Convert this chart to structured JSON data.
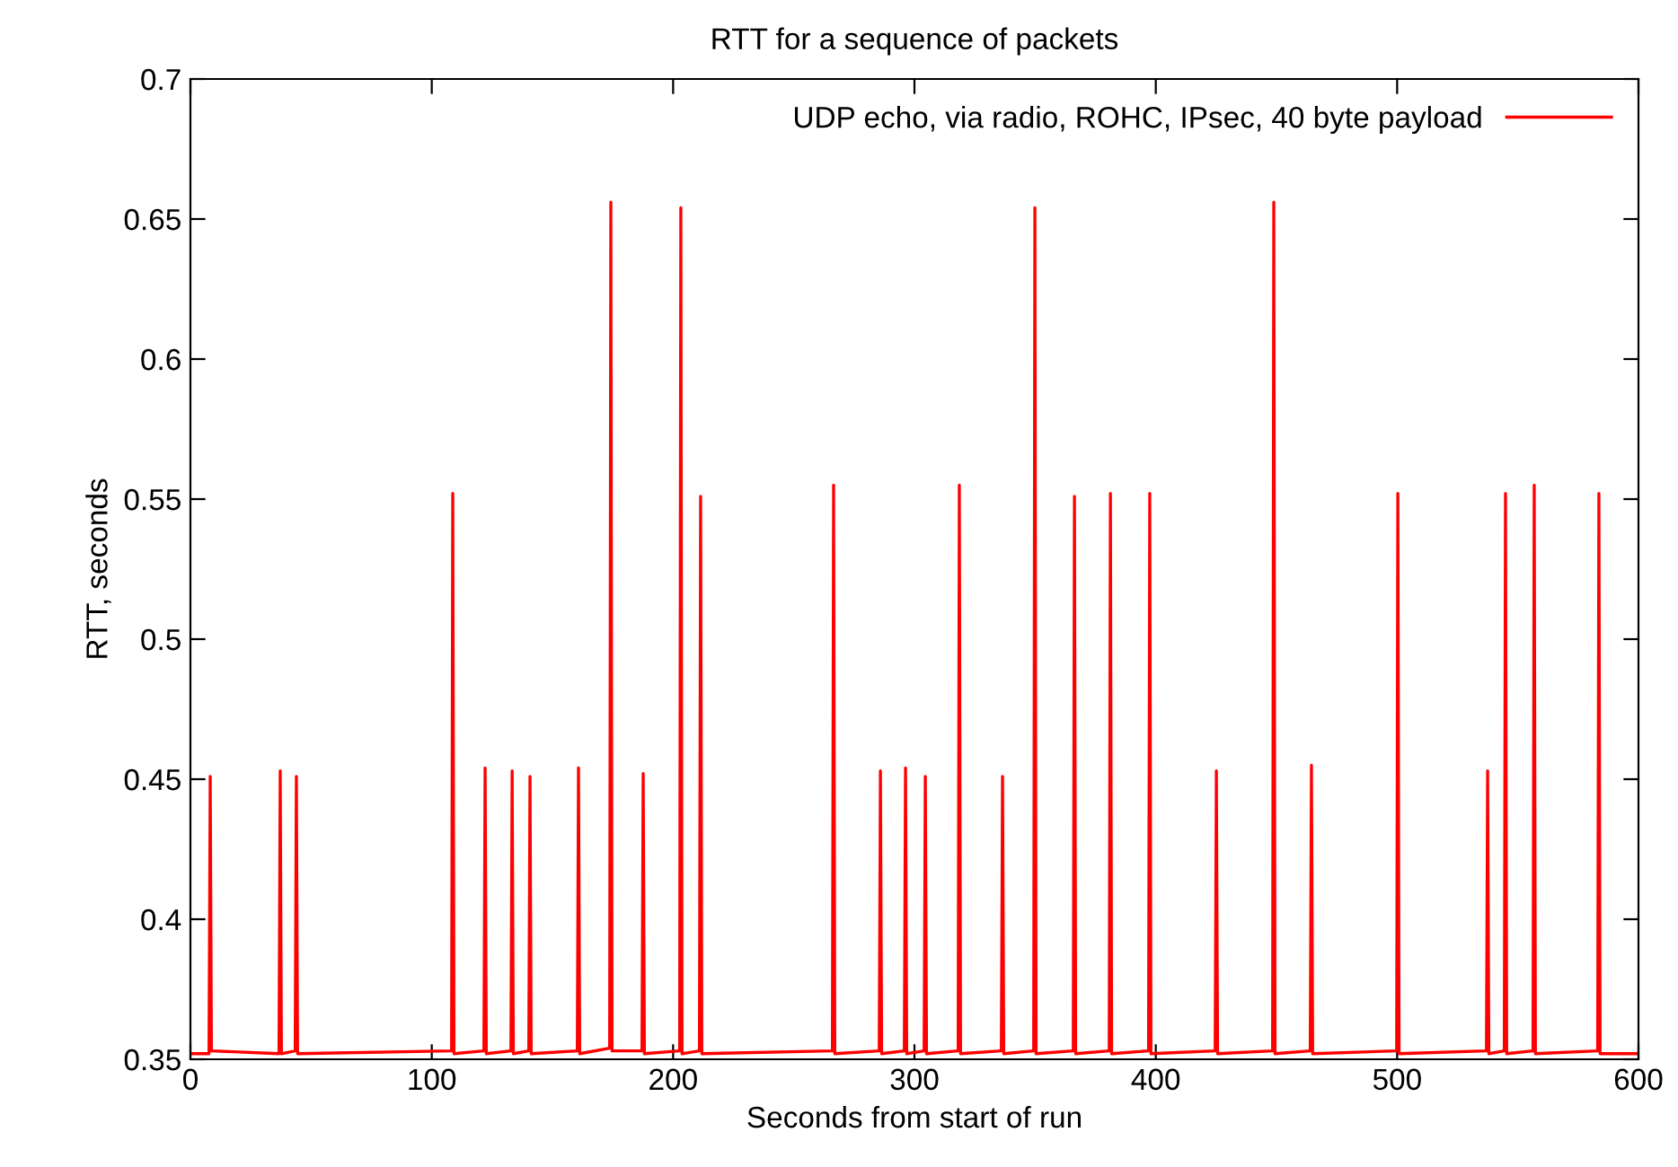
{
  "chart_data": {
    "type": "line",
    "title": "RTT for a sequence of packets",
    "xlabel": "Seconds from start of run",
    "ylabel": "RTT, seconds",
    "xlim": [
      0,
      600
    ],
    "xticks": [
      0,
      100,
      200,
      300,
      400,
      500,
      600
    ],
    "ylim": [
      0.35,
      0.7
    ],
    "yticks": [
      0.35,
      0.4,
      0.45,
      0.5,
      0.55,
      0.6,
      0.65,
      0.7
    ],
    "grid": false,
    "legend": "top right",
    "line_style": "solid",
    "marker": "none",
    "series": [
      {
        "name": "UDP echo, via radio, ROHC, IPsec, 40 byte payload",
        "color": "#ff0000",
        "x": [
          0,
          7.7,
          8.2,
          8.7,
          36.7,
          37.2,
          37.7,
          43.4,
          43.9,
          44.4,
          108.2,
          108.7,
          109.2,
          121.6,
          122.1,
          122.6,
          132.8,
          133.3,
          133.8,
          140.2,
          140.7,
          141.2,
          160.3,
          160.8,
          161.3,
          173.7,
          174.2,
          174.7,
          187.1,
          187.6,
          188.1,
          202.7,
          203.2,
          203.7,
          210.9,
          211.4,
          211.9,
          266.0,
          266.5,
          267.0,
          285.4,
          285.9,
          286.4,
          295.8,
          296.3,
          296.8,
          304.0,
          304.5,
          305.0,
          318.1,
          318.6,
          319.1,
          336.0,
          336.5,
          337.0,
          349.4,
          349.9,
          350.4,
          365.8,
          366.3,
          366.8,
          380.7,
          381.2,
          381.7,
          397.0,
          397.5,
          398.0,
          424.6,
          425.1,
          425.6,
          448.4,
          448.9,
          449.4,
          464.0,
          464.5,
          465.0,
          499.8,
          500.3,
          500.8,
          537.0,
          537.5,
          538.0,
          544.4,
          544.9,
          545.4,
          556.3,
          556.8,
          557.3,
          583.1,
          583.6,
          584.1,
          600
        ],
        "values": [
          0.352,
          0.352,
          0.451,
          0.353,
          0.352,
          0.453,
          0.352,
          0.353,
          0.451,
          0.352,
          0.353,
          0.552,
          0.352,
          0.353,
          0.454,
          0.352,
          0.353,
          0.453,
          0.352,
          0.353,
          0.451,
          0.352,
          0.353,
          0.454,
          0.352,
          0.354,
          0.656,
          0.353,
          0.353,
          0.452,
          0.352,
          0.353,
          0.654,
          0.352,
          0.353,
          0.551,
          0.352,
          0.353,
          0.555,
          0.352,
          0.353,
          0.453,
          0.352,
          0.353,
          0.454,
          0.352,
          0.353,
          0.451,
          0.352,
          0.353,
          0.555,
          0.352,
          0.353,
          0.451,
          0.352,
          0.353,
          0.654,
          0.352,
          0.353,
          0.551,
          0.352,
          0.353,
          0.552,
          0.352,
          0.353,
          0.552,
          0.352,
          0.353,
          0.453,
          0.352,
          0.353,
          0.656,
          0.352,
          0.353,
          0.455,
          0.352,
          0.353,
          0.552,
          0.352,
          0.353,
          0.453,
          0.352,
          0.353,
          0.552,
          0.352,
          0.353,
          0.555,
          0.352,
          0.353,
          0.552,
          0.352,
          0.352
        ]
      }
    ]
  }
}
